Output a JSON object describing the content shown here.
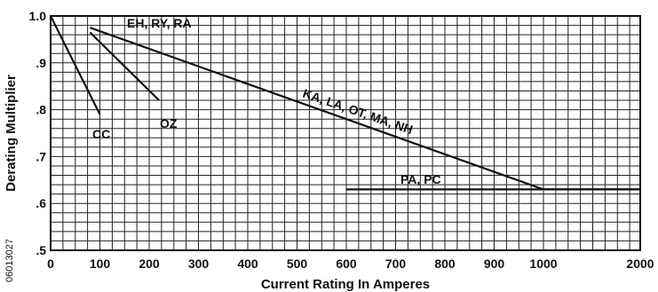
{
  "chart_data": {
    "type": "line",
    "xlabel": "Current Rating In Amperes",
    "ylabel": "Derating Multiplier",
    "x_ticks": [
      {
        "value": 0,
        "label": "0"
      },
      {
        "value": 100,
        "label": "100"
      },
      {
        "value": 200,
        "label": "200"
      },
      {
        "value": 300,
        "label": "300"
      },
      {
        "value": 400,
        "label": "400"
      },
      {
        "value": 500,
        "label": "500"
      },
      {
        "value": 600,
        "label": "600"
      },
      {
        "value": 700,
        "label": "700"
      },
      {
        "value": 800,
        "label": "800"
      },
      {
        "value": 900,
        "label": "900"
      },
      {
        "value": 1000,
        "label": "1000"
      },
      {
        "value": 2000,
        "label": "2000"
      }
    ],
    "y_ticks": [
      {
        "value": 1.0,
        "label": "1.0"
      },
      {
        "value": 0.9,
        "label": ".9"
      },
      {
        "value": 0.8,
        "label": ".8"
      },
      {
        "value": 0.7,
        "label": ".7"
      },
      {
        "value": 0.6,
        "label": ".6"
      },
      {
        "value": 0.5,
        "label": ".5"
      }
    ],
    "ylim": [
      0.5,
      1.0
    ],
    "grid": true,
    "series": [
      {
        "name": "CC",
        "points": [
          [
            0,
            1.0
          ],
          [
            100,
            0.79
          ]
        ]
      },
      {
        "name": "OZ",
        "points": [
          [
            80,
            0.965
          ],
          [
            220,
            0.82
          ]
        ]
      },
      {
        "name": "EH, RY, RA",
        "points": [
          [
            80,
            0.99
          ]
        ]
      },
      {
        "name": "KA, LA, OT, MA, NH",
        "points": [
          [
            80,
            0.975
          ],
          [
            1000,
            0.63
          ],
          [
            2000,
            0.63
          ]
        ]
      },
      {
        "name": "PA, PC",
        "points": [
          [
            600,
            0.63
          ],
          [
            2000,
            0.63
          ]
        ]
      }
    ]
  },
  "side_code": "06013027"
}
